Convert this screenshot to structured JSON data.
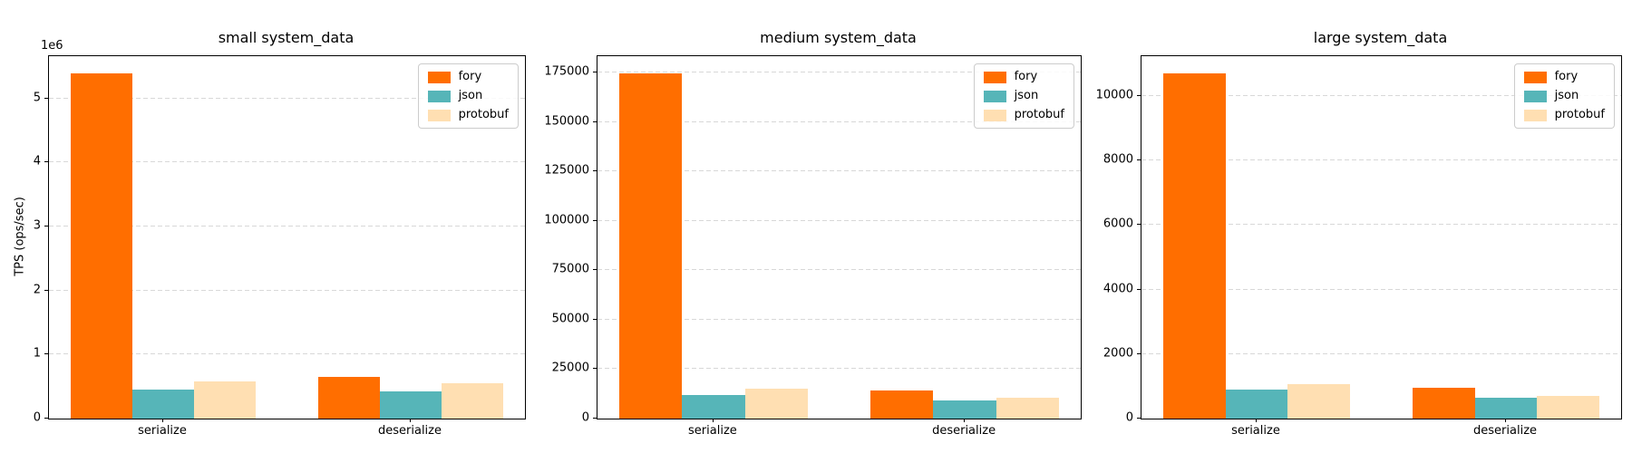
{
  "figure": {
    "background": "#ffffff"
  },
  "chart_data": [
    {
      "type": "bar",
      "title": "small system_data",
      "ylabel": "TPS (ops/sec)",
      "offset_text": "1e6",
      "categories": [
        "serialize",
        "deserialize"
      ],
      "series": [
        {
          "name": "fory",
          "color": "#ff6e00",
          "values": [
            5390000,
            650000
          ]
        },
        {
          "name": "json",
          "color": "#56b5b8",
          "values": [
            460000,
            430000
          ]
        },
        {
          "name": "protobuf",
          "color": "#ffdfb2",
          "values": [
            580000,
            550000
          ]
        }
      ],
      "ylim": [
        0,
        5659500
      ],
      "yticks": [
        {
          "v": 0,
          "label": "0"
        },
        {
          "v": 1000000,
          "label": "1"
        },
        {
          "v": 2000000,
          "label": "2"
        },
        {
          "v": 3000000,
          "label": "3"
        },
        {
          "v": 4000000,
          "label": "4"
        },
        {
          "v": 5000000,
          "label": "5"
        }
      ],
      "grid": "y-dashed",
      "legend_position": "upper right"
    },
    {
      "type": "bar",
      "title": "medium system_data",
      "ylabel": "",
      "offset_text": "",
      "categories": [
        "serialize",
        "deserialize"
      ],
      "series": [
        {
          "name": "fory",
          "color": "#ff6e00",
          "values": [
            174500,
            14200
          ]
        },
        {
          "name": "json",
          "color": "#56b5b8",
          "values": [
            11900,
            9200
          ]
        },
        {
          "name": "protobuf",
          "color": "#ffdfb2",
          "values": [
            14900,
            10700
          ]
        }
      ],
      "ylim": [
        0,
        183225
      ],
      "yticks": [
        {
          "v": 0,
          "label": "0"
        },
        {
          "v": 25000,
          "label": "25000"
        },
        {
          "v": 50000,
          "label": "50000"
        },
        {
          "v": 75000,
          "label": "75000"
        },
        {
          "v": 100000,
          "label": "100000"
        },
        {
          "v": 125000,
          "label": "125000"
        },
        {
          "v": 150000,
          "label": "150000"
        },
        {
          "v": 175000,
          "label": "175000"
        }
      ],
      "grid": "y-dashed",
      "legend_position": "upper right"
    },
    {
      "type": "bar",
      "title": "large system_data",
      "ylabel": "",
      "offset_text": "",
      "categories": [
        "serialize",
        "deserialize"
      ],
      "series": [
        {
          "name": "fory",
          "color": "#ff6e00",
          "values": [
            10700,
            960
          ]
        },
        {
          "name": "json",
          "color": "#56b5b8",
          "values": [
            900,
            640
          ]
        },
        {
          "name": "protobuf",
          "color": "#ffdfb2",
          "values": [
            1060,
            710
          ]
        }
      ],
      "ylim": [
        0,
        11235
      ],
      "yticks": [
        {
          "v": 0,
          "label": "0"
        },
        {
          "v": 2000,
          "label": "2000"
        },
        {
          "v": 4000,
          "label": "4000"
        },
        {
          "v": 6000,
          "label": "6000"
        },
        {
          "v": 8000,
          "label": "8000"
        },
        {
          "v": 10000,
          "label": "10000"
        }
      ],
      "grid": "y-dashed",
      "legend_position": "upper right"
    }
  ]
}
